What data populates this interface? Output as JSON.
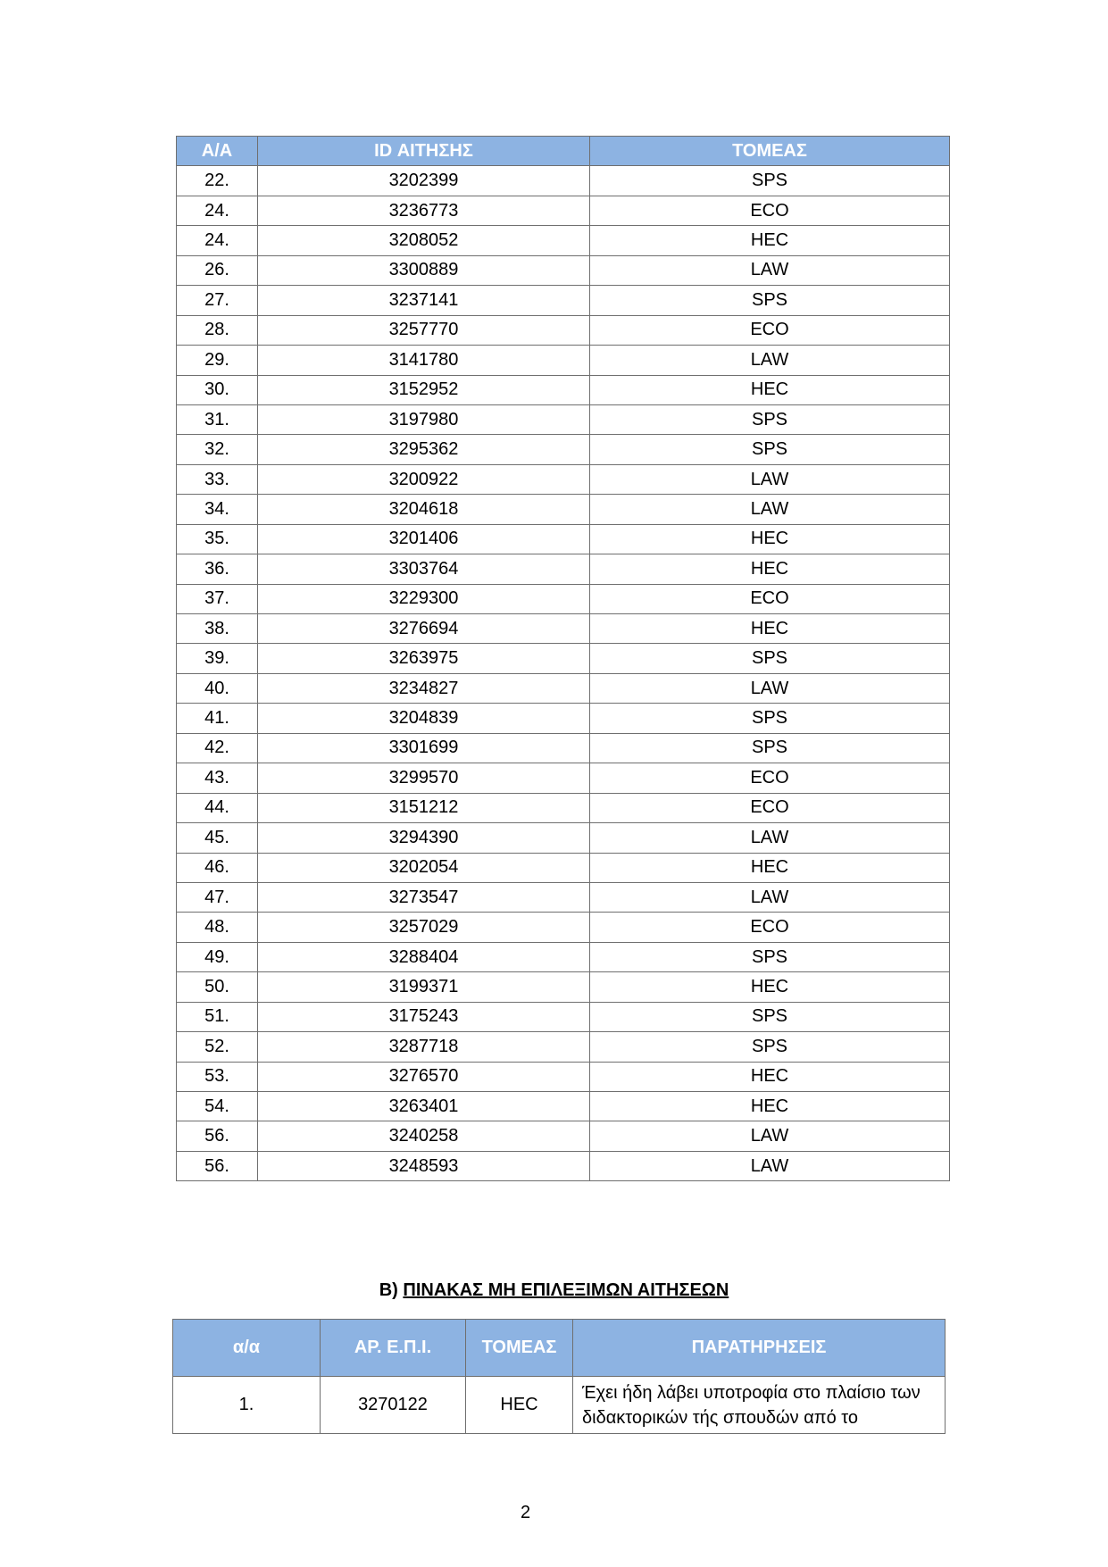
{
  "table_a": {
    "headers": [
      "Α/Α",
      "ID ΑΙΤΗΣΗΣ",
      "ΤΟΜΕΑΣ"
    ],
    "rows": [
      [
        "22.",
        "3202399",
        "SPS"
      ],
      [
        "24.",
        "3236773",
        "ECO"
      ],
      [
        "24.",
        "3208052",
        "HEC"
      ],
      [
        "26.",
        "3300889",
        "LAW"
      ],
      [
        "27.",
        "3237141",
        "SPS"
      ],
      [
        "28.",
        "3257770",
        "ECO"
      ],
      [
        "29.",
        "3141780",
        "LAW"
      ],
      [
        "30.",
        "3152952",
        "HEC"
      ],
      [
        "31.",
        "3197980",
        "SPS"
      ],
      [
        "32.",
        "3295362",
        "SPS"
      ],
      [
        "33.",
        "3200922",
        "LAW"
      ],
      [
        "34.",
        "3204618",
        "LAW"
      ],
      [
        "35.",
        "3201406",
        "HEC"
      ],
      [
        "36.",
        "3303764",
        "HEC"
      ],
      [
        "37.",
        "3229300",
        "ECO"
      ],
      [
        "38.",
        "3276694",
        "HEC"
      ],
      [
        "39.",
        "3263975",
        "SPS"
      ],
      [
        "40.",
        "3234827",
        "LAW"
      ],
      [
        "41.",
        "3204839",
        "SPS"
      ],
      [
        "42.",
        "3301699",
        "SPS"
      ],
      [
        "43.",
        "3299570",
        "ECO"
      ],
      [
        "44.",
        "3151212",
        "ECO"
      ],
      [
        "45.",
        "3294390",
        "LAW"
      ],
      [
        "46.",
        "3202054",
        "HEC"
      ],
      [
        "47.",
        "3273547",
        "LAW"
      ],
      [
        "48.",
        "3257029",
        "ECO"
      ],
      [
        "49.",
        "3288404",
        "SPS"
      ],
      [
        "50.",
        "3199371",
        "HEC"
      ],
      [
        "51.",
        "3175243",
        "SPS"
      ],
      [
        "52.",
        "3287718",
        "SPS"
      ],
      [
        "53.",
        "3276570",
        "HEC"
      ],
      [
        "54.",
        "3263401",
        "HEC"
      ],
      [
        "56.",
        "3240258",
        "LAW"
      ],
      [
        "56.",
        "3248593",
        "LAW"
      ]
    ]
  },
  "section_b": {
    "prefix": "Β) ",
    "title": "ΠΙΝΑΚΑΣ ΜΗ ΕΠΙΛΕΞΙΜΩΝ ΑΙΤΗΣΕΩΝ"
  },
  "table_b": {
    "headers": [
      "α/α",
      "ΑΡ. Ε.Π.Ι.",
      "ΤΟΜΕΑΣ",
      "ΠΑΡΑΤΗΡΗΣΕΙΣ"
    ],
    "rows": [
      [
        "1.",
        "3270122",
        "HEC",
        "Έχει ήδη λάβει υποτροφία στο πλαίσιο των διδακτορικών τής σπουδών από το"
      ]
    ]
  },
  "colors": {
    "header_bg": "#8db3e2",
    "header_text": "#ffffff"
  },
  "page_number": "2"
}
